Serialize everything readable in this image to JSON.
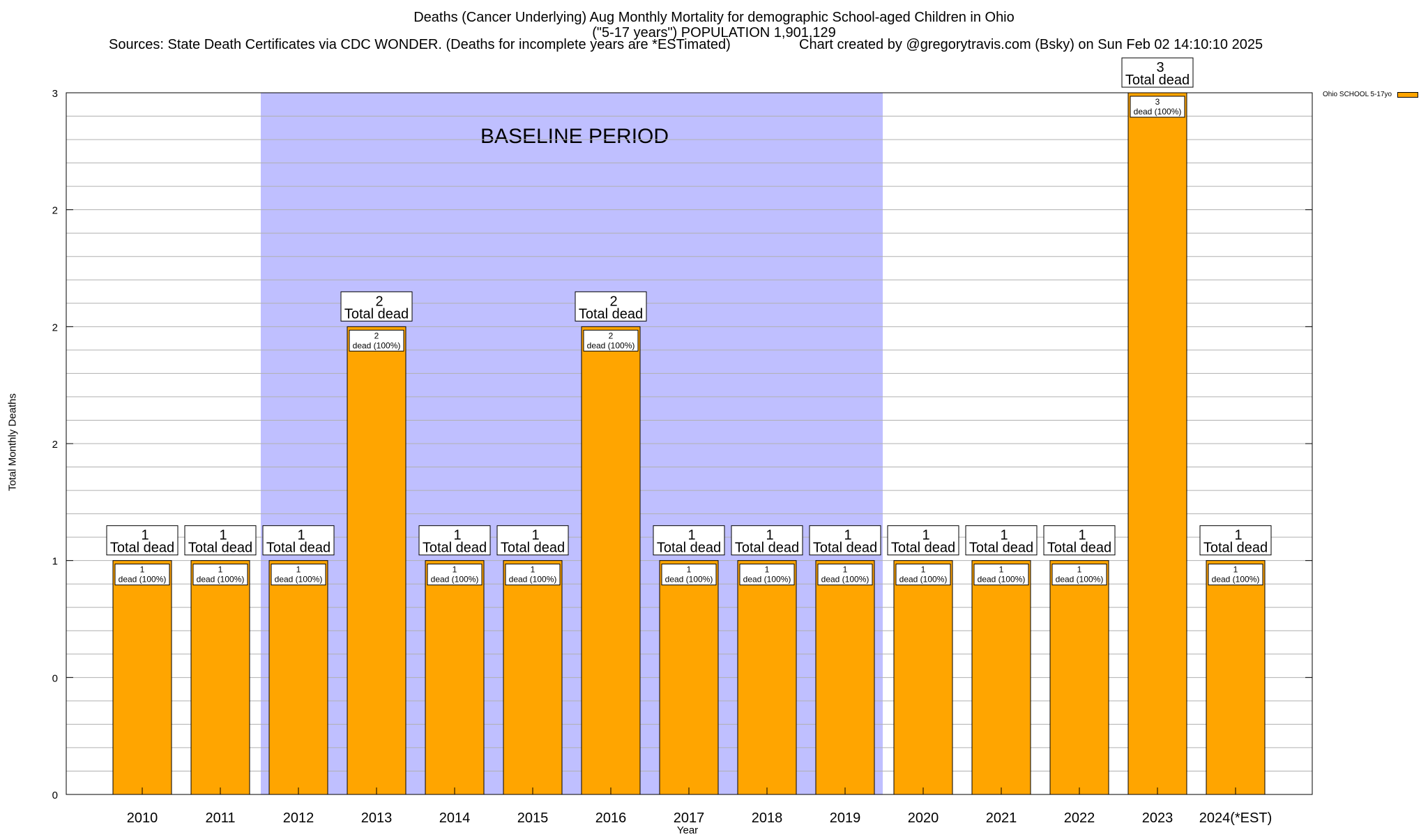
{
  "chart_data": {
    "type": "bar",
    "title_line1": "Deaths (Cancer Underlying) Aug Monthly Mortality for demographic School-aged Children in Ohio",
    "title_line2": "(\"5-17 years\") POPULATION 1,901,129",
    "sources": "Sources: State Death Certificates via CDC WONDER. (Deaths for incomplete years are *ESTimated)",
    "credit": "Chart created by @gregorytravis.com (Bsky) on Sun Feb 02 14:10:10 2025",
    "xlabel": "Year",
    "ylabel": "Total Monthly Deaths",
    "ylim": [
      0,
      3
    ],
    "y_tick_values": [
      0,
      0.5,
      1,
      1.5,
      2,
      2.5,
      3
    ],
    "y_tick_labels": [
      "0",
      "0",
      "1",
      "2",
      "2",
      "2",
      "3"
    ],
    "grid": true,
    "legend_position": "top-right",
    "bar_color": "#FFA500",
    "baseline_color": "#BFBFFF",
    "baseline_label": "BASELINE PERIOD",
    "baseline_range": [
      "2012",
      "2019"
    ],
    "categories": [
      "2010",
      "2011",
      "2012",
      "2013",
      "2014",
      "2015",
      "2016",
      "2017",
      "2018",
      "2019",
      "2020",
      "2021",
      "2022",
      "2023",
      "2024(*EST)"
    ],
    "series": [
      {
        "name": "Ohio SCHOOL 5-17yo",
        "values": [
          1,
          1,
          1,
          2,
          1,
          1,
          2,
          1,
          1,
          1,
          1,
          1,
          1,
          3,
          1
        ]
      }
    ],
    "total_label_suffix": "Total dead",
    "inner_label_suffix": "dead (100%)"
  }
}
